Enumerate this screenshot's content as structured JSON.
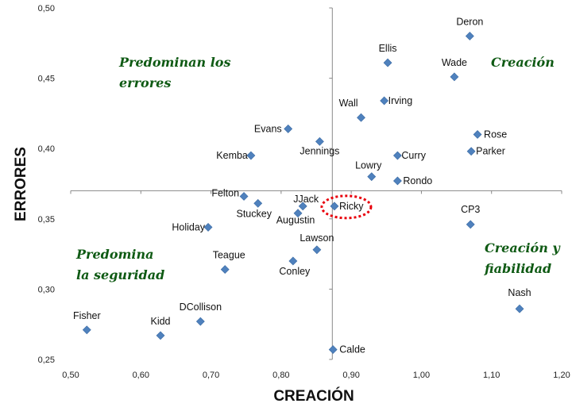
{
  "chart_data": {
    "type": "scatter",
    "xlabel": "CREACIÓN",
    "ylabel": "ERRORES",
    "xlim": [
      0.5,
      1.2
    ],
    "ylim": [
      0.25,
      0.5
    ],
    "x_ticks": [
      "0,50",
      "0,60",
      "0,70",
      "0,80",
      "0,90",
      "1,00",
      "1,10",
      "1,20"
    ],
    "y_ticks": [
      "0,25",
      "0,30",
      "0,35",
      "0,40",
      "0,45",
      "0,50"
    ],
    "crosshair": {
      "x": 0.873,
      "y": 0.37
    },
    "marker_color": "#4f81bd",
    "highlight_color": "#e8000b",
    "quadrant_labels": [
      {
        "lines": [
          "Predominan los",
          "errores"
        ],
        "position": "top-left"
      },
      {
        "lines": [
          "Creación"
        ],
        "position": "top-right"
      },
      {
        "lines": [
          "Predomina",
          "la seguridad"
        ],
        "position": "bottom-left"
      },
      {
        "lines": [
          "Creación y",
          "fiabilidad"
        ],
        "position": "bottom-right"
      }
    ],
    "points": [
      {
        "name": "Deron",
        "x": 1.069,
        "y": 0.48
      },
      {
        "name": "Ellis",
        "x": 0.952,
        "y": 0.461
      },
      {
        "name": "Wade",
        "x": 1.047,
        "y": 0.451
      },
      {
        "name": "Irving",
        "x": 0.947,
        "y": 0.434
      },
      {
        "name": "Wall",
        "x": 0.914,
        "y": 0.422
      },
      {
        "name": "Rose",
        "x": 1.08,
        "y": 0.41
      },
      {
        "name": "Evans",
        "x": 0.81,
        "y": 0.414
      },
      {
        "name": "Jennings",
        "x": 0.855,
        "y": 0.405
      },
      {
        "name": "Parker",
        "x": 1.071,
        "y": 0.398
      },
      {
        "name": "Curry",
        "x": 0.966,
        "y": 0.395
      },
      {
        "name": "Kemba",
        "x": 0.757,
        "y": 0.395
      },
      {
        "name": "Lowry",
        "x": 0.929,
        "y": 0.38
      },
      {
        "name": "Rondo",
        "x": 0.966,
        "y": 0.377
      },
      {
        "name": "Felton",
        "x": 0.747,
        "y": 0.366
      },
      {
        "name": "Stuckey",
        "x": 0.767,
        "y": 0.361
      },
      {
        "name": "JJack",
        "x": 0.831,
        "y": 0.359
      },
      {
        "name": "Augustin",
        "x": 0.824,
        "y": 0.354
      },
      {
        "name": "Ricky",
        "x": 0.876,
        "y": 0.359,
        "highlight": true
      },
      {
        "name": "CP3",
        "x": 1.07,
        "y": 0.346
      },
      {
        "name": "Holiday",
        "x": 0.696,
        "y": 0.344
      },
      {
        "name": "Lawson",
        "x": 0.851,
        "y": 0.328
      },
      {
        "name": "Teague",
        "x": 0.72,
        "y": 0.314
      },
      {
        "name": "Conley",
        "x": 0.817,
        "y": 0.32
      },
      {
        "name": "Nash",
        "x": 1.14,
        "y": 0.286
      },
      {
        "name": "Fisher",
        "x": 0.523,
        "y": 0.271
      },
      {
        "name": "DCollison",
        "x": 0.685,
        "y": 0.277
      },
      {
        "name": "Kidd",
        "x": 0.628,
        "y": 0.267
      },
      {
        "name": "Calde",
        "x": 0.874,
        "y": 0.257
      }
    ]
  }
}
